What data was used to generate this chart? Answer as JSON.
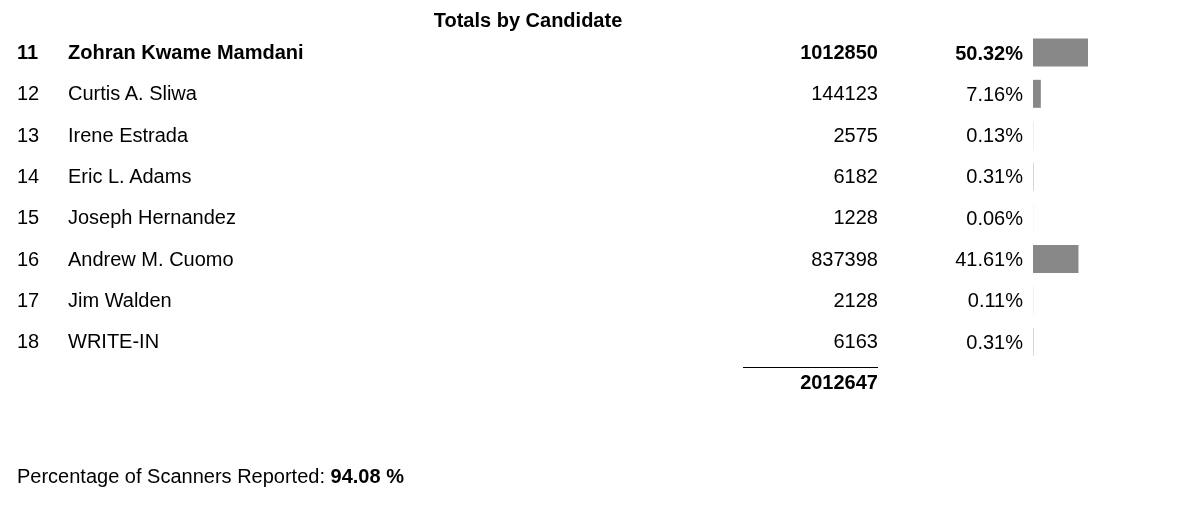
{
  "chart_data": {
    "type": "bar",
    "orientation": "horizontal",
    "title": "Totals by Candidate",
    "categories": [
      "Zohran Kwame Mamdani",
      "Curtis A. Sliwa",
      "Irene Estrada",
      "Eric L. Adams",
      "Joseph Hernandez",
      "Andrew M. Cuomo",
      "Jim Walden",
      "WRITE-IN"
    ],
    "values": [
      50.32,
      7.16,
      0.13,
      0.31,
      0.06,
      41.61,
      0.11,
      0.31
    ],
    "value_labels": [
      "50.32%",
      "7.16%",
      "0.13%",
      "0.31%",
      "0.06%",
      "41.61%",
      "0.11%",
      "0.31%"
    ],
    "color": "#888888",
    "tick_labels": "y",
    "grid": false,
    "legend": false,
    "annotations": [
      "11",
      "1012850",
      "12",
      "144123",
      "13",
      "2575",
      "14",
      "6182",
      "15",
      "1228",
      "16",
      "837398",
      "17",
      "2128",
      "18",
      "6163",
      "2012647",
      "Percentage of Scanners Reported:",
      "94.08 %"
    ]
  }
}
